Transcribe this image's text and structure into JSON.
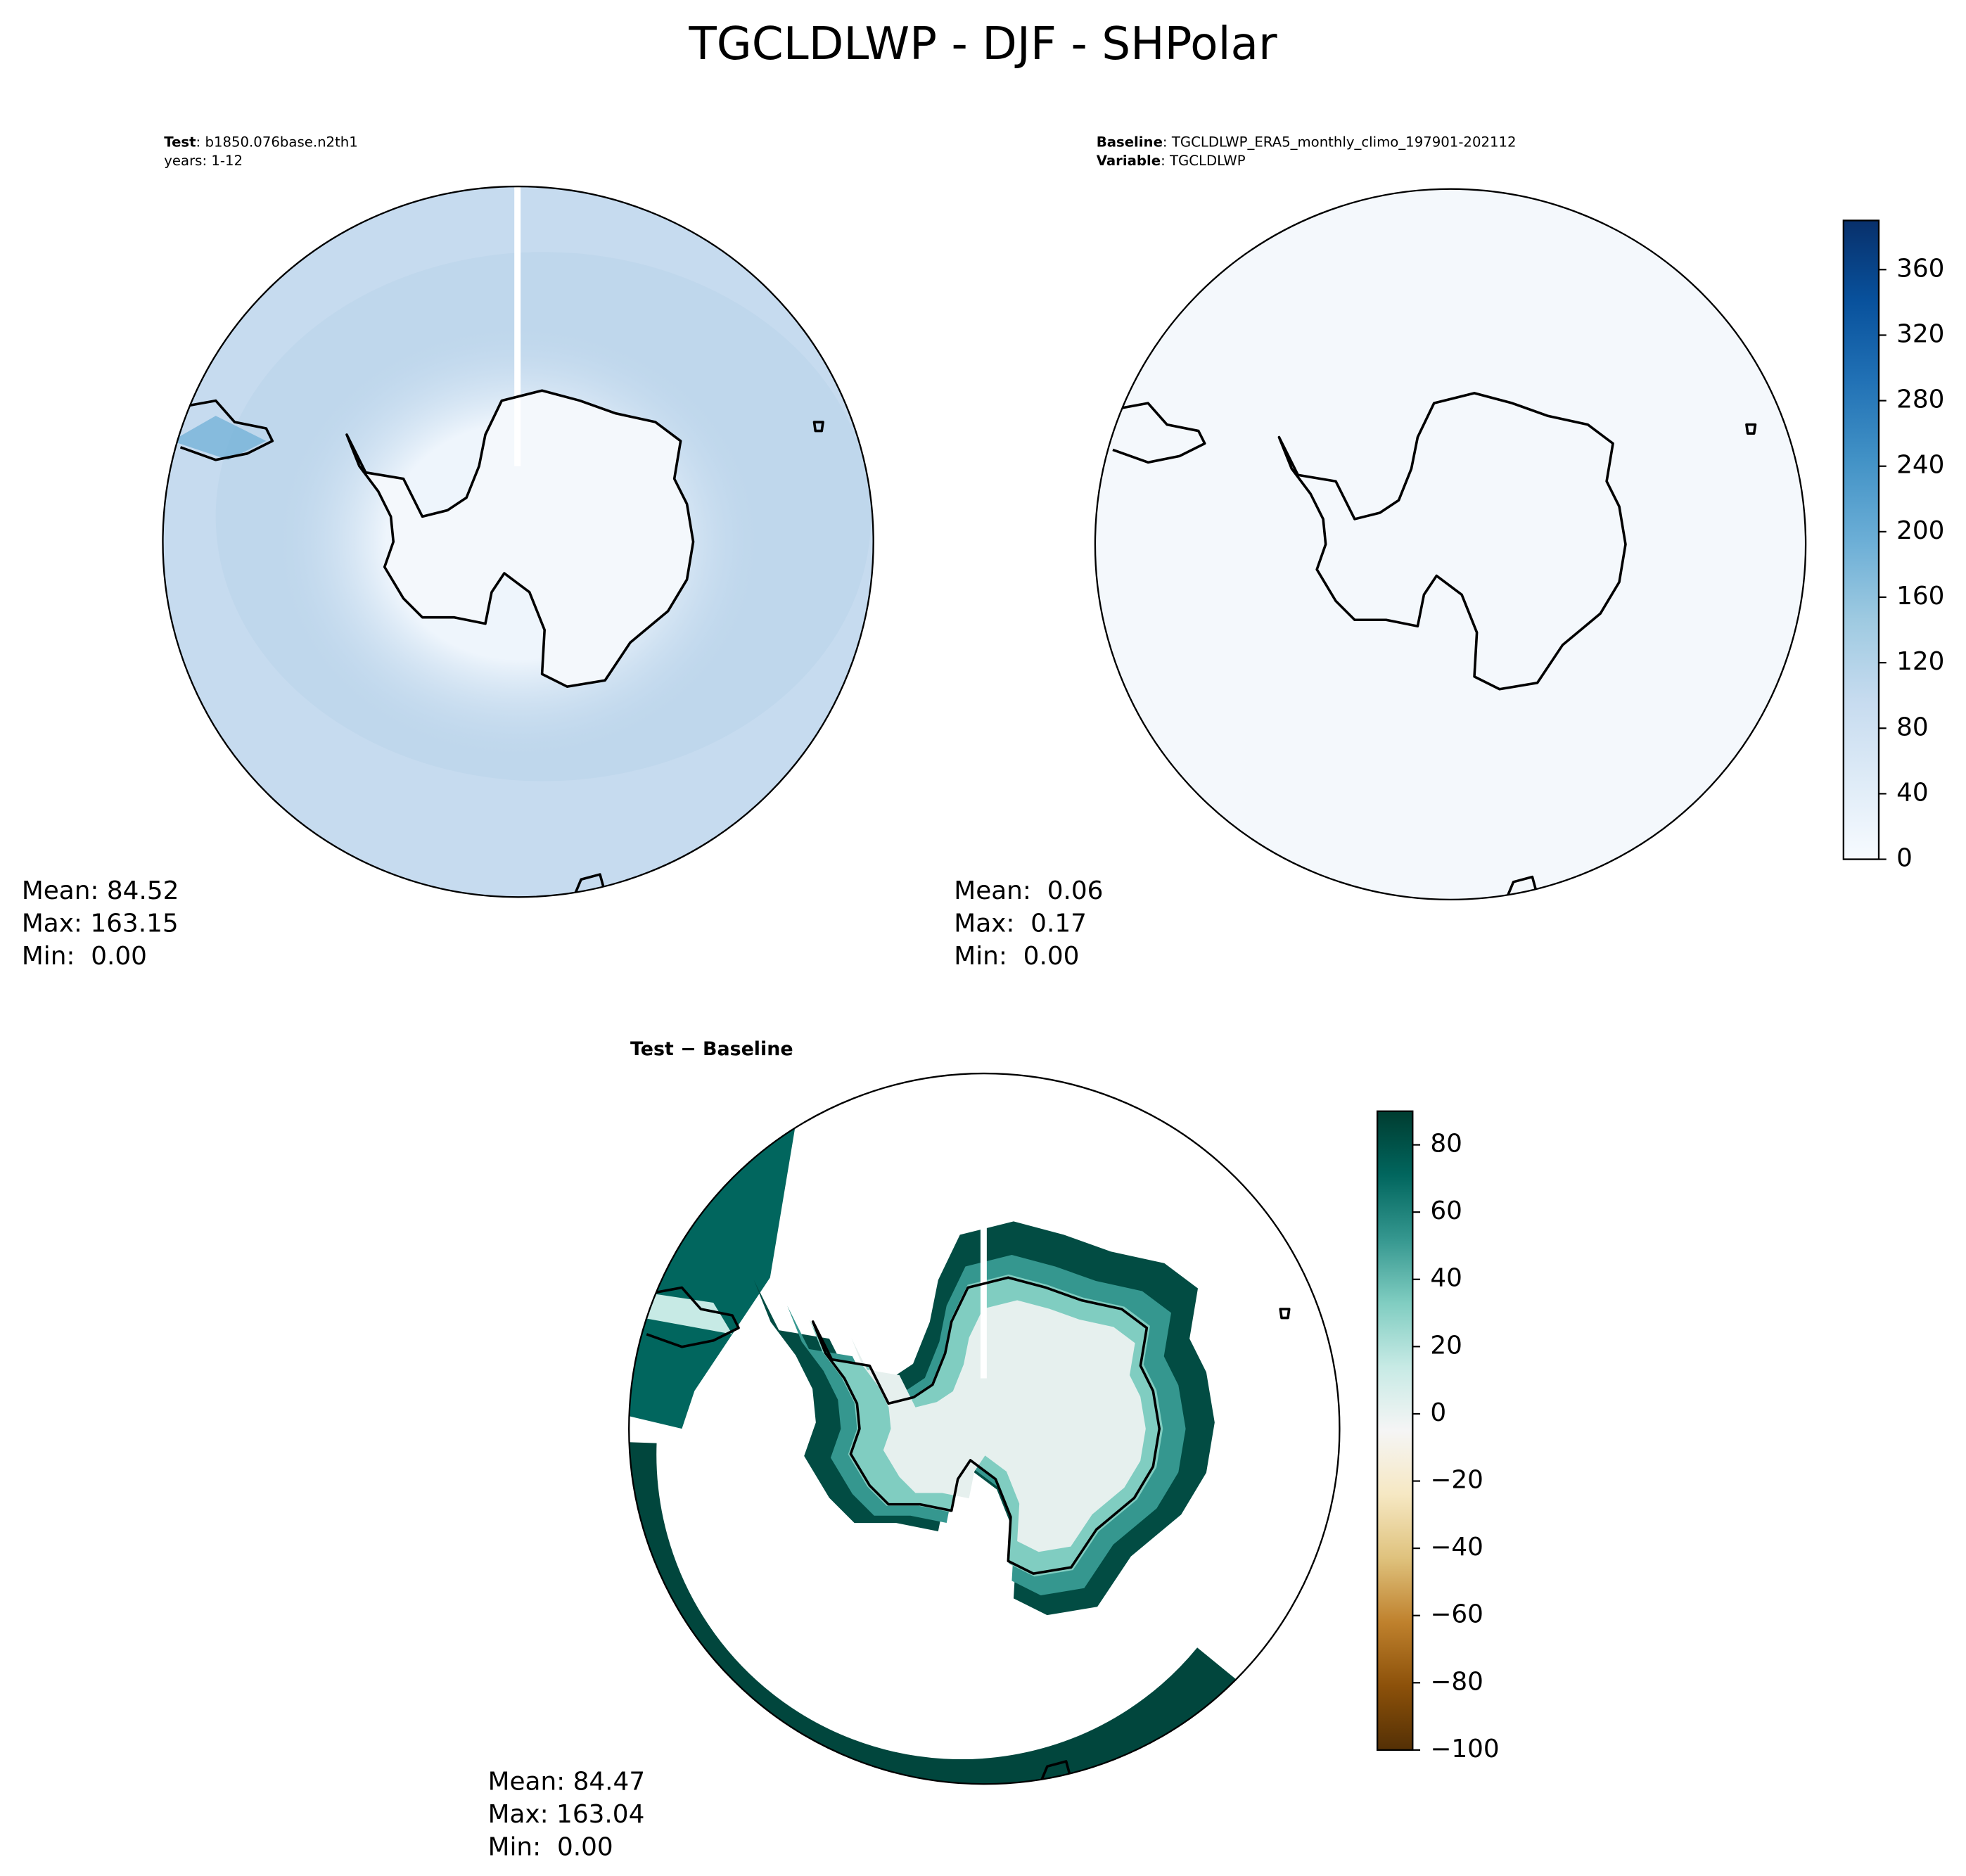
{
  "title": "TGCLDLWP - DJF - SHPolar",
  "panels": [
    {
      "header": [
        {
          "bold": "Test",
          "text": ": b1850.076base.n2th1"
        },
        {
          "bold": null,
          "text": "years: 1-12"
        }
      ],
      "stats": [
        "Mean: 84.52",
        "Max: 163.15",
        "Min:  0.00"
      ]
    },
    {
      "header": [
        {
          "bold": "Baseline",
          "text": ": TGCLDLWP_ERA5_monthly_climo_197901-202112"
        },
        {
          "bold": "Variable",
          "text": ": TGCLDLWP"
        }
      ],
      "stats": [
        "Mean:  0.06",
        "Max:  0.17",
        "Min:  0.00"
      ]
    },
    {
      "header": [
        {
          "bold": "Test − Baseline",
          "text": null
        }
      ],
      "stats": [
        "Mean: 84.47",
        "Max: 163.04",
        "Min:  0.00"
      ]
    }
  ],
  "colorbars": [
    {
      "lim": [
        0,
        390
      ],
      "ticks": [
        0,
        40,
        80,
        120,
        160,
        200,
        240,
        280,
        320,
        360
      ],
      "colors": [
        "#f7fbff",
        "#deebf7",
        "#c6dbef",
        "#9ecae1",
        "#6baed6",
        "#4292c6",
        "#2171b5",
        "#08519c",
        "#08306b"
      ]
    },
    {
      "lim": [
        -100,
        90
      ],
      "ticks": [
        {
          "value": -100,
          "label": "−100"
        },
        {
          "value": -80,
          "label": "−80"
        },
        {
          "value": -60,
          "label": "−60"
        },
        {
          "value": -40,
          "label": "−40"
        },
        {
          "value": -20,
          "label": "−20"
        },
        0,
        20,
        40,
        60,
        80
      ],
      "colors": [
        "#543005",
        "#8c510a",
        "#bf812d",
        "#dfc27d",
        "#f6e8c3",
        "#f5f5f5",
        "#c7eae5",
        "#80cdc1",
        "#35978f",
        "#01665e",
        "#003c30"
      ]
    }
  ]
}
